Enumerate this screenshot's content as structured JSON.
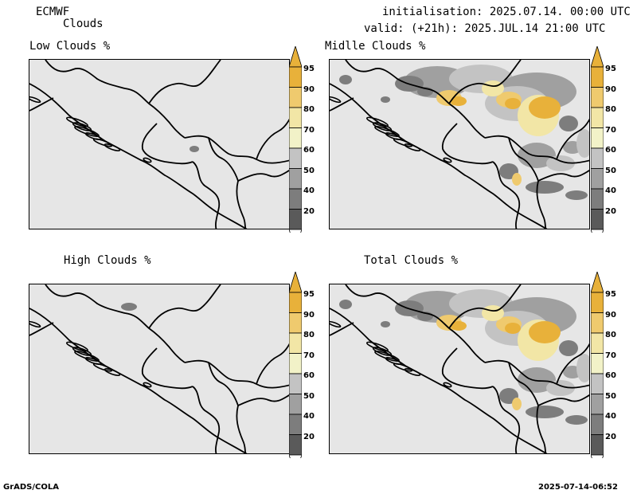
{
  "header": {
    "model": "ECMWF",
    "product": "Clouds",
    "init_line": "initialisation: 2025.07.14. 00:00 UTC",
    "valid_line": "valid: (+21h): 2025.JUL.14 21:00 UTC"
  },
  "panels": [
    {
      "id": "low",
      "title": "Low Clouds %"
    },
    {
      "id": "middle",
      "title": "Midlle Clouds %"
    },
    {
      "id": "high",
      "title": "High Clouds %"
    },
    {
      "id": "total",
      "title": "Total Clouds %"
    }
  ],
  "colorbar": {
    "levels": [
      "20",
      "40",
      "50",
      "60",
      "70",
      "80",
      "90",
      "95"
    ],
    "colors": [
      "#5a5a5a",
      "#7d7d7d",
      "#a0a0a0",
      "#c3c3c3",
      "#f2f2c8",
      "#f2e6a6",
      "#efca6e",
      "#e8b13a"
    ]
  },
  "footer": {
    "left": "GrADS/COLA",
    "right": "2025-07-14-06:52"
  }
}
